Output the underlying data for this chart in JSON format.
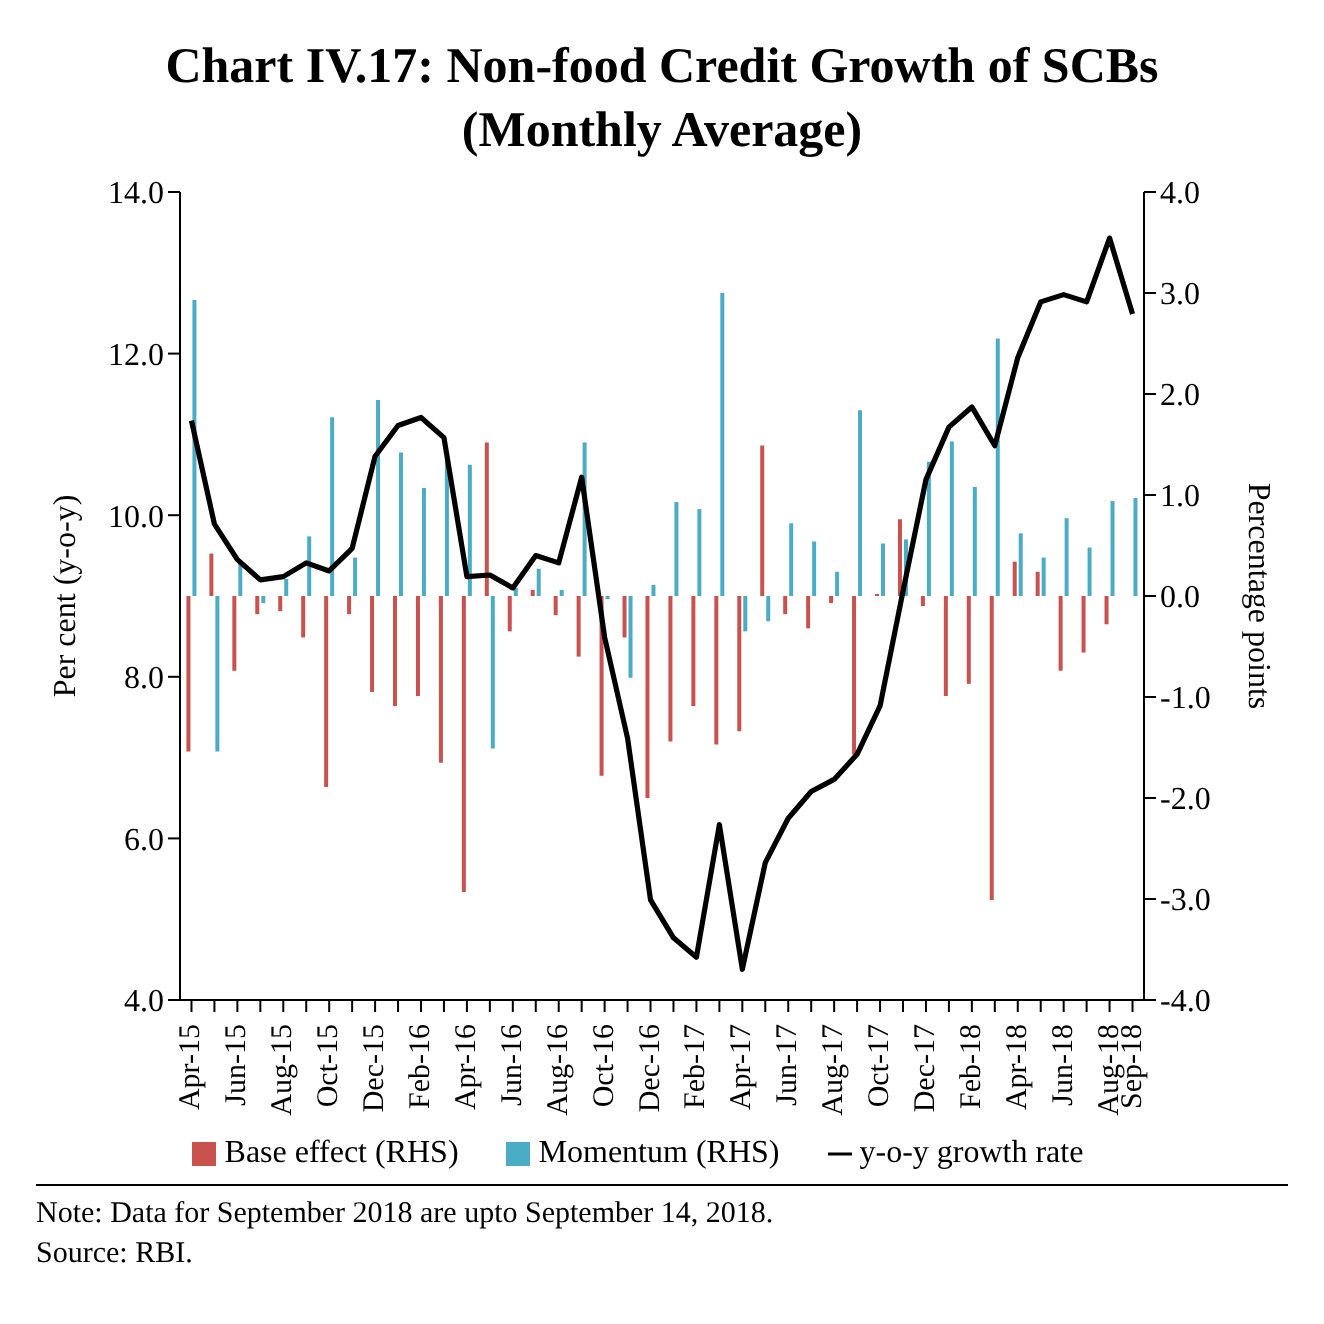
{
  "chart_data": {
    "type": "bar",
    "title": "Chart IV.17: Non-food Credit Growth of SCBs (Monthly Average)",
    "ylabel": "Per cent (y-o-y)",
    "y2label": "Percentage points",
    "categories": [
      "Apr-15",
      null,
      "Jun-15",
      null,
      "Aug-15",
      null,
      "Oct-15",
      null,
      "Dec-15",
      null,
      "Feb-16",
      null,
      "Apr-16",
      null,
      "Jun-16",
      null,
      "Aug-16",
      null,
      "Oct-16",
      null,
      "Dec-16",
      null,
      "Feb-17",
      null,
      "Apr-17",
      null,
      "Jun-17",
      null,
      "Aug-17",
      null,
      "Oct-17",
      null,
      "Dec-17",
      null,
      "Feb-18",
      null,
      "Apr-18",
      null,
      "Jun-18",
      null,
      "Aug-18",
      "Sep-18"
    ],
    "series": [
      {
        "name": "Base effect (RHS)",
        "axis": "y2",
        "color": "#c9514e",
        "values": [
          -1.54,
          0.42,
          -0.74,
          -0.18,
          -0.15,
          -0.41,
          -1.89,
          -0.18,
          -0.95,
          -1.09,
          -0.99,
          -1.65,
          -2.93,
          1.52,
          -0.35,
          0.06,
          -0.19,
          -0.6,
          -1.78,
          -0.41,
          -2.0,
          -1.44,
          -1.09,
          -1.47,
          -1.34,
          1.49,
          -0.18,
          -0.32,
          -0.07,
          -1.57,
          0.02,
          0.76,
          -0.1,
          -0.99,
          -0.87,
          -3.01,
          0.34,
          0.24,
          -0.74,
          -0.56,
          -0.28,
          null
        ]
      },
      {
        "name": "Momentum (RHS)",
        "axis": "y2",
        "color": "#4bacc6",
        "values": [
          2.93,
          -1.54,
          0.35,
          -0.07,
          0.17,
          0.59,
          1.77,
          0.38,
          1.94,
          1.42,
          1.07,
          1.42,
          1.3,
          -1.51,
          0.08,
          0.27,
          0.06,
          1.52,
          -0.03,
          -0.81,
          0.11,
          0.93,
          0.86,
          3.0,
          -0.35,
          -0.25,
          0.72,
          0.54,
          0.24,
          1.84,
          0.52,
          0.56,
          1.33,
          1.53,
          1.08,
          2.55,
          0.62,
          0.38,
          0.77,
          0.48,
          0.94,
          0.97
        ]
      },
      {
        "name": "y-o-y growth rate",
        "type": "line",
        "color": "#000000",
        "values": [
          11.17,
          9.89,
          9.45,
          9.2,
          9.24,
          9.41,
          9.31,
          9.59,
          10.73,
          11.11,
          11.21,
          10.96,
          9.24,
          9.26,
          9.1,
          9.5,
          9.41,
          10.47,
          8.49,
          7.24,
          5.24,
          4.77,
          4.53,
          6.17,
          4.38,
          5.7,
          6.25,
          6.58,
          6.73,
          7.04,
          7.64,
          9.06,
          10.44,
          11.09,
          11.34,
          10.86,
          11.95,
          12.64,
          12.73,
          12.64,
          13.43,
          12.49
        ]
      }
    ],
    "ylim": [
      4,
      14
    ],
    "yticks": [
      {
        "value": 4,
        "label": "4.0"
      },
      {
        "value": 6,
        "label": "6.0"
      },
      {
        "value": 8,
        "label": "8.0"
      },
      {
        "value": 10,
        "label": "10.0"
      },
      {
        "value": 12,
        "label": "12.0"
      },
      {
        "value": 14,
        "label": "14.0"
      }
    ],
    "y2lim": [
      -4,
      4
    ],
    "y2ticks": [
      {
        "value": -4,
        "label": "-4.0"
      },
      {
        "value": -3,
        "label": "-3.0"
      },
      {
        "value": -2,
        "label": "-2.0"
      },
      {
        "value": -1,
        "label": "-1.0"
      },
      {
        "value": 0,
        "label": "0.0"
      },
      {
        "value": 1,
        "label": "1.0"
      },
      {
        "value": 2,
        "label": "2.0"
      },
      {
        "value": 3,
        "label": "3.0"
      },
      {
        "value": 4,
        "label": "4.0"
      }
    ],
    "grid": false,
    "legend": "bottom",
    "marker": "none",
    "annotations": [
      "Note: Data for September 2018 are upto September 14, 2018.",
      "Source: RBI."
    ]
  }
}
